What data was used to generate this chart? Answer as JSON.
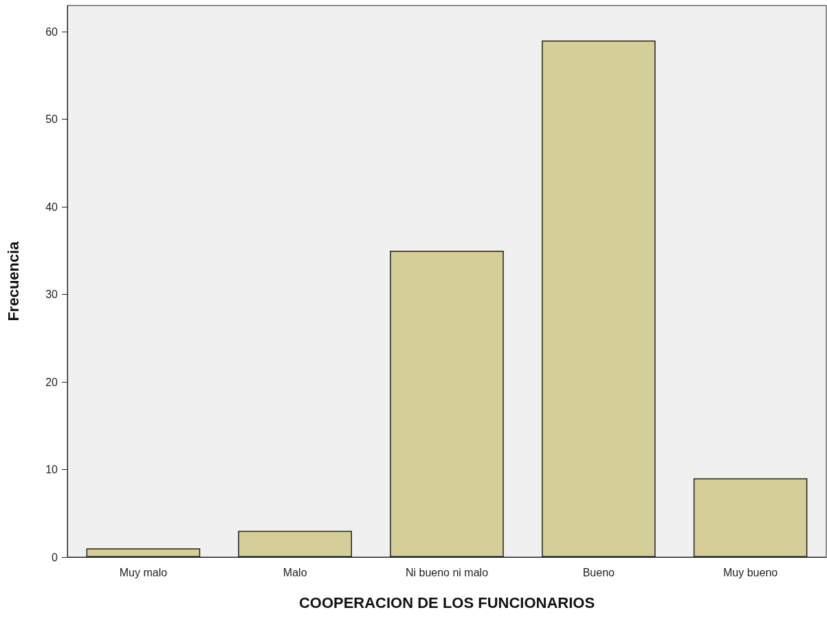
{
  "chart_data": {
    "type": "bar",
    "xlabel": "COOPERACION DE LOS FUNCIONARIOS",
    "ylabel": "Frecuencia",
    "categories": [
      "Muy malo",
      "Malo",
      "Ni bueno ni malo",
      "Bueno",
      "Muy bueno"
    ],
    "values": [
      1,
      3,
      35,
      59,
      9
    ],
    "color": "#d4cf98",
    "ylim": [
      0,
      63
    ],
    "yticks": [
      0,
      10,
      20,
      30,
      40,
      50,
      60
    ]
  }
}
